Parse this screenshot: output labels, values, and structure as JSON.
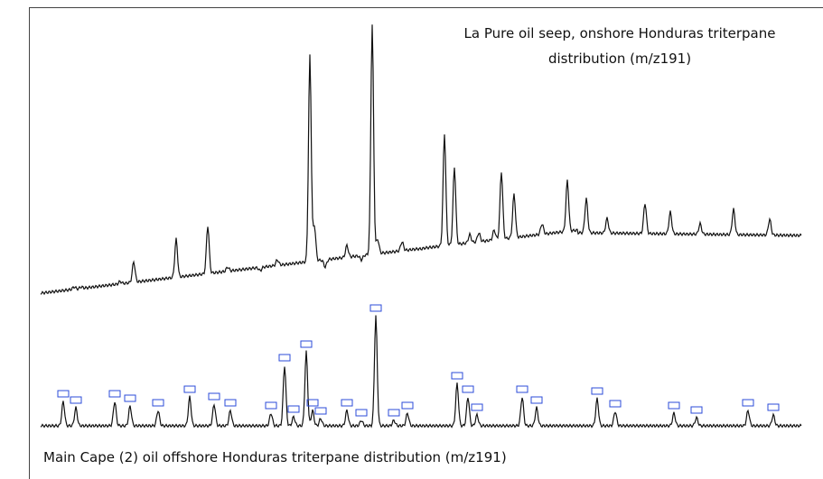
{
  "figure": {
    "top_caption": [
      "La Pure oil seep, onshore Honduras triterpane",
      "distribution (m/z191)"
    ],
    "bottom_caption": "Main Cape (2) oil offshore Honduras triterpane distribution (m/z191)"
  }
}
